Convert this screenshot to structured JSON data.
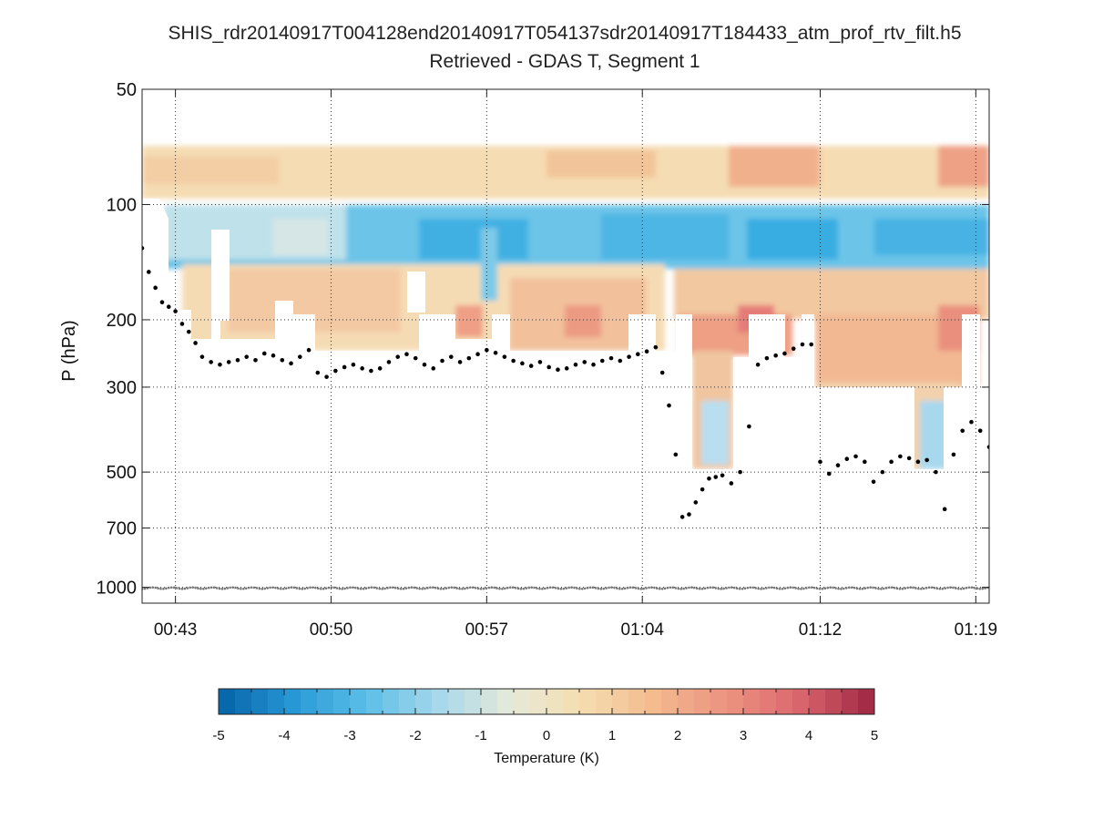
{
  "chart_data": {
    "type": "heatmap",
    "title": "SHIS_rdr20140917T004128end20140917T054137sdr20140917T184433_atm_prof_rtv_filt.h5",
    "subtitle": "Retrieved - GDAS T, Segment 1",
    "xlabel": "",
    "ylabel": "P (hPa)",
    "y_scale": "log",
    "y_inverted": true,
    "ylim": [
      50,
      1100
    ],
    "yticks": [
      {
        "value": 50,
        "label": "50"
      },
      {
        "value": 100,
        "label": "100"
      },
      {
        "value": 200,
        "label": "200"
      },
      {
        "value": 300,
        "label": "300"
      },
      {
        "value": 500,
        "label": "500"
      },
      {
        "value": 700,
        "label": "700"
      },
      {
        "value": 1000,
        "label": "1000"
      }
    ],
    "xlim_minutes": [
      41.5,
      79.6
    ],
    "xticks": [
      {
        "value": 43,
        "label": "00:43"
      },
      {
        "value": 50,
        "label": "00:50"
      },
      {
        "value": 57,
        "label": "00:57"
      },
      {
        "value": 64,
        "label": "01:04"
      },
      {
        "value": 72,
        "label": "01:12"
      },
      {
        "value": 79,
        "label": "01:19"
      }
    ],
    "grid": true,
    "colorbar": {
      "label": "Temperature (K)",
      "min": -5,
      "max": 5,
      "ticks": [
        "-5",
        "-4",
        "-3",
        "-2",
        "-1",
        "0",
        "1",
        "2",
        "3",
        "4",
        "5"
      ],
      "colors": [
        "#0868ac",
        "#2b9bd8",
        "#5ec0e8",
        "#a8d8ec",
        "#e6ead8",
        "#f5ddb0",
        "#f3bb8e",
        "#ec9481",
        "#dd6a6f",
        "#a52c47"
      ]
    },
    "heatmap_bands": [
      {
        "name": "upper warm band",
        "p_top": 75,
        "p_bottom": 98,
        "value": 0.8
      },
      {
        "name": "cold band",
        "p_top": 100,
        "p_bottom": 150,
        "value": -2.6
      },
      {
        "name": "lower warm band",
        "p_top": 150,
        "p_bottom": 240,
        "value": 0.9
      }
    ],
    "cloud_top_pressure_hPa": [
      [
        41.5,
        130
      ],
      [
        41.8,
        150
      ],
      [
        42.1,
        165
      ],
      [
        42.4,
        180
      ],
      [
        42.7,
        185
      ],
      [
        43.0,
        190
      ],
      [
        43.3,
        205
      ],
      [
        43.6,
        215
      ],
      [
        43.9,
        230
      ],
      [
        44.2,
        250
      ],
      [
        44.6,
        258
      ],
      [
        45.0,
        262
      ],
      [
        45.4,
        258
      ],
      [
        45.8,
        255
      ],
      [
        46.2,
        250
      ],
      [
        46.6,
        255
      ],
      [
        47.0,
        245
      ],
      [
        47.4,
        248
      ],
      [
        47.8,
        255
      ],
      [
        48.2,
        260
      ],
      [
        48.6,
        250
      ],
      [
        49.0,
        240
      ],
      [
        49.4,
        275
      ],
      [
        49.8,
        282
      ],
      [
        50.2,
        272
      ],
      [
        50.6,
        266
      ],
      [
        51.0,
        262
      ],
      [
        51.4,
        268
      ],
      [
        51.8,
        272
      ],
      [
        52.2,
        268
      ],
      [
        52.6,
        258
      ],
      [
        53.0,
        250
      ],
      [
        53.4,
        246
      ],
      [
        53.8,
        252
      ],
      [
        54.2,
        262
      ],
      [
        54.6,
        268
      ],
      [
        55.0,
        256
      ],
      [
        55.4,
        250
      ],
      [
        55.8,
        258
      ],
      [
        56.2,
        252
      ],
      [
        56.6,
        246
      ],
      [
        57.0,
        240
      ],
      [
        57.4,
        244
      ],
      [
        57.8,
        250
      ],
      [
        58.2,
        256
      ],
      [
        58.6,
        260
      ],
      [
        59.0,
        264
      ],
      [
        59.4,
        258
      ],
      [
        59.8,
        266
      ],
      [
        60.2,
        270
      ],
      [
        60.6,
        268
      ],
      [
        61.0,
        262
      ],
      [
        61.4,
        258
      ],
      [
        61.8,
        262
      ],
      [
        62.2,
        256
      ],
      [
        62.6,
        252
      ],
      [
        63.0,
        256
      ],
      [
        63.4,
        250
      ],
      [
        63.8,
        246
      ],
      [
        64.2,
        242
      ],
      [
        64.6,
        236
      ],
      [
        64.9,
        275
      ],
      [
        65.2,
        335
      ],
      [
        65.5,
        450
      ],
      [
        65.8,
        655
      ],
      [
        66.1,
        645
      ],
      [
        66.4,
        600
      ],
      [
        66.7,
        555
      ],
      [
        67.0,
        520
      ],
      [
        67.3,
        515
      ],
      [
        67.6,
        510
      ],
      [
        68.0,
        535
      ],
      [
        68.4,
        500
      ],
      [
        68.8,
        380
      ],
      [
        69.2,
        262
      ],
      [
        69.6,
        252
      ],
      [
        70.0,
        248
      ],
      [
        70.4,
        245
      ],
      [
        70.8,
        238
      ],
      [
        71.2,
        232
      ],
      [
        71.6,
        232
      ],
      [
        72.0,
        470
      ],
      [
        72.4,
        505
      ],
      [
        72.8,
        480
      ],
      [
        73.2,
        462
      ],
      [
        73.6,
        455
      ],
      [
        74.0,
        470
      ],
      [
        74.4,
        530
      ],
      [
        74.8,
        500
      ],
      [
        75.2,
        470
      ],
      [
        75.6,
        455
      ],
      [
        76.0,
        460
      ],
      [
        76.4,
        470
      ],
      [
        76.8,
        465
      ],
      [
        77.2,
        500
      ],
      [
        77.6,
        625
      ],
      [
        78.0,
        450
      ],
      [
        78.4,
        390
      ],
      [
        78.8,
        370
      ],
      [
        79.2,
        390
      ],
      [
        79.6,
        430
      ]
    ],
    "surface_pressure_hPa": 1005
  }
}
